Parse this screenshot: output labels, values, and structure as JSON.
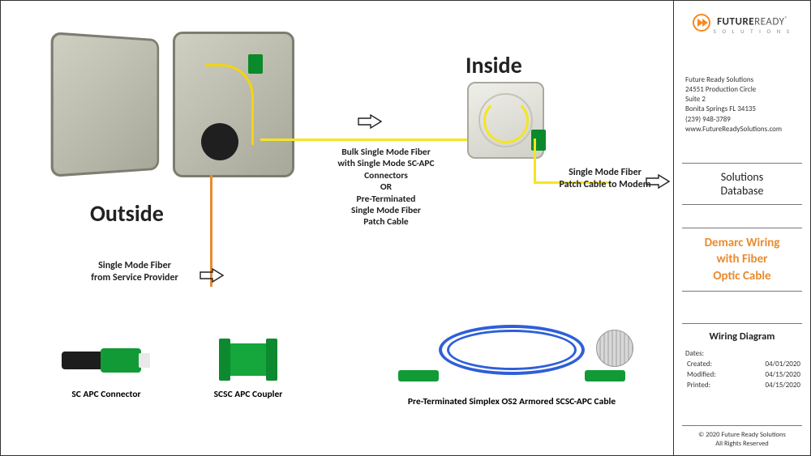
{
  "headings": {
    "outside": "Outside",
    "inside": "Inside"
  },
  "labels": {
    "feeder": "Single Mode Fiber\nfrom Service Provider",
    "between": "Bulk Single Mode Fiber\nwith Single Mode SC-APC\nConnectors\nOR\nPre-Terminated\nSingle Mode Fiber\nPatch Cable",
    "tomodem": "Single Mode Fiber\nPatch Cable to Modem"
  },
  "components": {
    "sc_connector": "SC APC Connector",
    "coupler": "SCSC APC Coupler",
    "patch": "Pre-Terminated Simplex OS2 Armored SCSC-APC Cable"
  },
  "colors": {
    "fiber_yellow": "#f5e521",
    "feeder_orange": "#e78b2f",
    "patch_blue": "#2e5fd8",
    "apc_green": "#129a36",
    "brand_orange": "#f58a1f"
  },
  "sidebar": {
    "brand_bold": "FUTURE",
    "brand_light": "READY",
    "brand_sub": "S O L U T I O N S",
    "company": {
      "name": "Future Ready Solutions",
      "addr1": "24551 Production Circle",
      "addr2": "Suite 2",
      "city": "Bonita Springs FL 34135",
      "phone": "(239) 948-3789",
      "web": "www.FutureReadySolutions.com"
    },
    "db_line1": "Solutions",
    "db_line2": "Database",
    "title_l1": "Demarc Wiring",
    "title_l2": "with Fiber",
    "title_l3": "Optic Cable",
    "kind": "Wiring Diagram",
    "dates_header": "Dates:",
    "dates": {
      "created_k": "Created:",
      "created_v": "04/01/2020",
      "modified_k": "Modified:",
      "modified_v": "04/15/2020",
      "printed_k": "Printed:",
      "printed_v": "04/15/2020"
    },
    "copyright_l1": "© 2020 Future Ready Solutions",
    "copyright_l2": "All Rights Reserved"
  }
}
